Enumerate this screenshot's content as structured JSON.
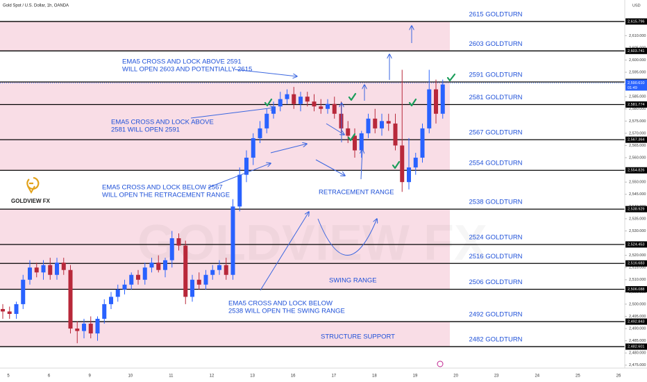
{
  "chart_data": {
    "type": "candlestick",
    "title": "Gold Spot / U.S. Dollar, 1h, OANDA",
    "currency": "USD",
    "logo": "GOLDVIEW FX",
    "watermark": "GOLDVIEW FX",
    "colors": {
      "up": "#2962ff",
      "down": "#b8283a",
      "level": "#000000",
      "zone": "#f9dde6",
      "current": "#2962ff"
    },
    "ylim": [
      2473.8,
      2624.6
    ],
    "yticks": [
      {
        "value": 2475,
        "label": "2,475.000"
      },
      {
        "value": 2480,
        "label": "2,480.000"
      },
      {
        "value": 2485,
        "label": "2,485.000"
      },
      {
        "value": 2490,
        "label": "2,490.000"
      },
      {
        "value": 2495,
        "label": "2,495.000"
      },
      {
        "value": 2500,
        "label": "2,500.000"
      },
      {
        "value": 2505,
        "label": "2,505.000"
      },
      {
        "value": 2510,
        "label": "2,510.000"
      },
      {
        "value": 2515,
        "label": "2,515.000"
      },
      {
        "value": 2520,
        "label": "2,520.000"
      },
      {
        "value": 2525,
        "label": "2,525.000"
      },
      {
        "value": 2530,
        "label": "2,530.000"
      },
      {
        "value": 2535,
        "label": "2,535.000"
      },
      {
        "value": 2540,
        "label": "2,540.000"
      },
      {
        "value": 2545,
        "label": "2,545.000"
      },
      {
        "value": 2550,
        "label": "2,550.000"
      },
      {
        "value": 2555,
        "label": "2,555.000"
      },
      {
        "value": 2560,
        "label": "2,560.000"
      },
      {
        "value": 2565,
        "label": "2,565.000"
      },
      {
        "value": 2570,
        "label": "2,570.000"
      },
      {
        "value": 2575,
        "label": "2,575.000"
      },
      {
        "value": 2580,
        "label": "2,580.000"
      },
      {
        "value": 2585,
        "label": "2,585.000"
      },
      {
        "value": 2590,
        "label": "2,590.000"
      },
      {
        "value": 2595,
        "label": "2,595.000"
      },
      {
        "value": 2600,
        "label": "2,600.000"
      },
      {
        "value": 2605,
        "label": "2,605.000"
      },
      {
        "value": 2610,
        "label": "2,610.000"
      }
    ],
    "x_labels": [
      "5",
      "6",
      "9",
      "10",
      "11",
      "12",
      "13",
      "16",
      "17",
      "18",
      "19",
      "20",
      "23",
      "24",
      "25",
      "26"
    ],
    "open": [
      2498,
      2497,
      2496,
      2500,
      2510,
      2515,
      2513,
      2516,
      2512,
      2517,
      2514,
      2490,
      2489,
      2492,
      2488,
      2494,
      2500,
      2503,
      2506,
      2508,
      2512,
      2510,
      2515,
      2517,
      2514,
      2518,
      2527,
      2524,
      2503,
      2510,
      2508,
      2512,
      2514,
      2516,
      2512,
      2540,
      2553,
      2560,
      2568,
      2572,
      2578,
      2581,
      2584,
      2586,
      2582,
      2585,
      2583,
      2581,
      2580,
      2582,
      2578,
      2572,
      2569,
      2563,
      2570,
      2576,
      2572,
      2575,
      2574,
      2565,
      2550,
      2556,
      2560,
      2572,
      2588,
      2578
    ],
    "high": [
      2500,
      2499,
      2501,
      2512,
      2518,
      2517,
      2518,
      2519,
      2519,
      2519,
      2516,
      2493,
      2494,
      2495,
      2495,
      2502,
      2505,
      2508,
      2510,
      2513,
      2514,
      2517,
      2519,
      2520,
      2519,
      2530,
      2529,
      2526,
      2512,
      2513,
      2514,
      2516,
      2518,
      2519,
      2543,
      2556,
      2563,
      2570,
      2575,
      2580,
      2583,
      2587,
      2588,
      2589,
      2587,
      2587,
      2586,
      2584,
      2584,
      2585,
      2583,
      2575,
      2572,
      2571,
      2578,
      2580,
      2578,
      2578,
      2578,
      2596,
      2568,
      2562,
      2574,
      2596,
      2592,
      2592
    ],
    "low": [
      2494,
      2494,
      2494,
      2498,
      2508,
      2511,
      2510,
      2510,
      2510,
      2512,
      2488,
      2484,
      2486,
      2486,
      2485,
      2492,
      2498,
      2501,
      2504,
      2506,
      2508,
      2508,
      2513,
      2513,
      2511,
      2515,
      2522,
      2500,
      2501,
      2506,
      2506,
      2510,
      2512,
      2510,
      2510,
      2538,
      2550,
      2557,
      2566,
      2570,
      2576,
      2579,
      2582,
      2580,
      2579,
      2581,
      2579,
      2578,
      2578,
      2576,
      2570,
      2566,
      2560,
      2560,
      2568,
      2570,
      2569,
      2571,
      2563,
      2546,
      2547,
      2553,
      2558,
      2570,
      2574,
      2576
    ],
    "close": [
      2497,
      2496,
      2500,
      2510,
      2515,
      2513,
      2516,
      2512,
      2517,
      2514,
      2490,
      2489,
      2492,
      2488,
      2494,
      2500,
      2503,
      2506,
      2508,
      2512,
      2510,
      2515,
      2517,
      2514,
      2518,
      2527,
      2524,
      2503,
      2510,
      2508,
      2512,
      2514,
      2516,
      2512,
      2540,
      2553,
      2560,
      2568,
      2572,
      2578,
      2581,
      2584,
      2586,
      2582,
      2585,
      2583,
      2581,
      2580,
      2582,
      2578,
      2572,
      2569,
      2563,
      2570,
      2576,
      2572,
      2575,
      2574,
      2565,
      2550,
      2556,
      2560,
      2572,
      2588,
      2578,
      2590
    ],
    "zones": [
      [
        2603.741,
        2615.796
      ],
      [
        2554.826,
        2591.027
      ],
      [
        2506.088,
        2538.929
      ],
      [
        2482.601,
        2492.843
      ]
    ],
    "levels": [
      {
        "value": 2615.796,
        "label": "2615 GOLDTURN",
        "price_label": "2,615.796"
      },
      {
        "value": 2603.741,
        "label": "2603 GOLDTURN",
        "price_label": "2,603.741"
      },
      {
        "value": 2591.027,
        "label": "2591 GOLDTURN",
        "price_label": "2,591.027"
      },
      {
        "value": 2581.774,
        "label": "2581 GOLDTURN",
        "price_label": "2,581.774"
      },
      {
        "value": 2567.364,
        "label": "2567 GOLDTURN",
        "price_label": "2,567.364"
      },
      {
        "value": 2554.826,
        "label": "2554 GOLDTURN",
        "price_label": "2,554.826"
      },
      {
        "value": 2538.929,
        "label": "2538 GOLDTURN",
        "price_label": "2,538.929"
      },
      {
        "value": 2524.453,
        "label": "2524 GOLDTURN",
        "price_label": "2,524.453"
      },
      {
        "value": 2516.683,
        "label": "2516 GOLDTURN",
        "price_label": "2,516.683"
      },
      {
        "value": 2506.088,
        "label": "2506 GOLDTURN",
        "price_label": "2,506.088"
      },
      {
        "value": 2492.843,
        "label": "2492 GOLDTURN",
        "price_label": "2,492.843"
      },
      {
        "value": 2482.601,
        "label": "2482 GOLDTURN",
        "price_label": "2,482.601"
      }
    ],
    "current_price": 2590.61,
    "current_price_label": "2,590.610",
    "countdown": "01:49",
    "annotations": [
      {
        "lines": [
          "EMA5 CROSS AND LOCK ABOVE 2591",
          "WILL OPEN 2603 AND POTENTIALLY 2615"
        ]
      },
      {
        "lines": [
          "EMA5 CROSS AND LOCK ABOVE",
          "2581 WILL OPEN 2591"
        ]
      },
      {
        "lines": [
          "EMA5 CROSS AND LOCK BELOW 2567",
          "WILL OPEN THE RETRACEMENT RANGE"
        ]
      },
      {
        "lines": [
          "RETRACEMENT RANGE"
        ]
      },
      {
        "lines": [
          "SWING RANGE"
        ]
      },
      {
        "lines": [
          "EMA5 CROSS AND LOCK BELOW",
          "2538 WILL OPEN THE SWING RANGE"
        ]
      },
      {
        "lines": [
          "STRUCTURE SUPPORT"
        ]
      }
    ]
  }
}
